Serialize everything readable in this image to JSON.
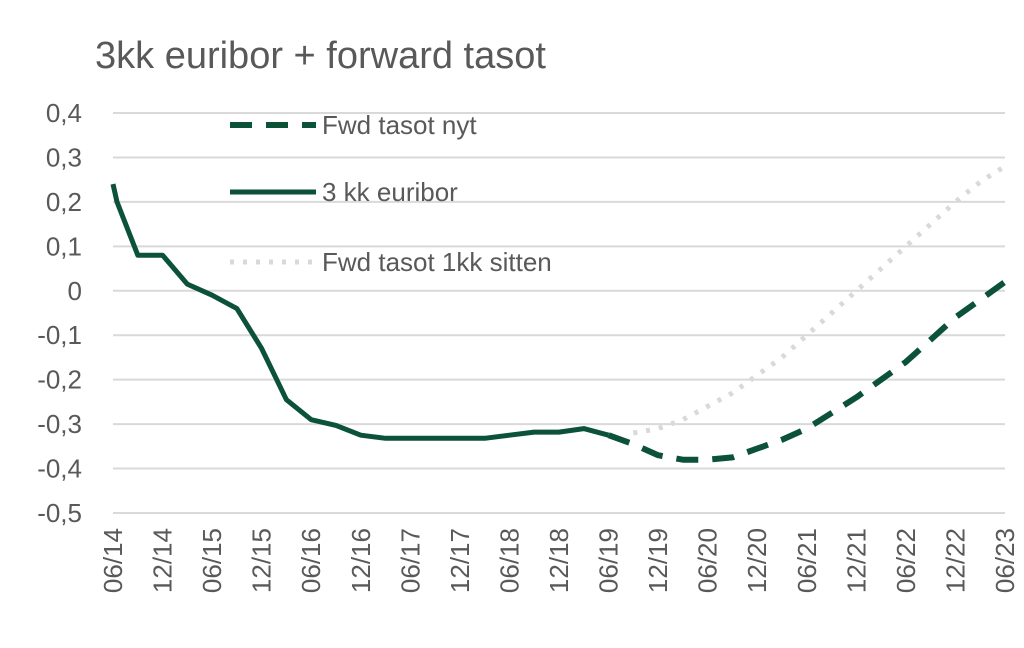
{
  "chart_data": {
    "type": "line",
    "title": "3kk euribor + forward tasot",
    "xlabel": "",
    "ylabel": "",
    "ylim": [
      -0.5,
      0.4
    ],
    "yticks": [
      "0,4",
      "0,3",
      "0,2",
      "0,1",
      "0",
      "-0,1",
      "-0,2",
      "-0,3",
      "-0,4",
      "-0,5"
    ],
    "ytick_values": [
      0.4,
      0.3,
      0.2,
      0.1,
      0,
      -0.1,
      -0.2,
      -0.3,
      -0.4,
      -0.5
    ],
    "x_categories": [
      "06/14",
      "12/14",
      "06/15",
      "12/15",
      "06/16",
      "12/16",
      "06/17",
      "12/17",
      "06/18",
      "12/18",
      "06/19",
      "12/19",
      "06/20",
      "12/20",
      "06/21",
      "12/21",
      "06/22",
      "12/22",
      "06/23"
    ],
    "grid": true,
    "legend_position": "top-left",
    "series": [
      {
        "name": "Fwd tasot nyt",
        "style": "dashed",
        "color": "#0b5239",
        "x": [
          10.0,
          10.5,
          11.0,
          11.5,
          12.0,
          12.5,
          13.0,
          13.5,
          14.0,
          14.5,
          15.0,
          15.5,
          16.0,
          16.5,
          17.0,
          17.5,
          18.0
        ],
        "values": [
          -0.325,
          -0.345,
          -0.37,
          -0.38,
          -0.38,
          -0.375,
          -0.355,
          -0.335,
          -0.31,
          -0.275,
          -0.24,
          -0.2,
          -0.16,
          -0.11,
          -0.06,
          -0.02,
          0.02
        ]
      },
      {
        "name": "3 kk euribor",
        "style": "solid",
        "color": "#0b5239",
        "x": [
          0.0,
          0.08,
          0.5,
          1.0,
          1.5,
          2.0,
          2.5,
          3.0,
          3.5,
          4.0,
          4.5,
          5.0,
          5.5,
          6.0,
          6.5,
          7.0,
          7.5,
          8.0,
          8.5,
          9.0,
          9.5,
          10.0
        ],
        "values": [
          0.24,
          0.2,
          0.08,
          0.08,
          0.015,
          -0.01,
          -0.04,
          -0.13,
          -0.245,
          -0.29,
          -0.303,
          -0.325,
          -0.332,
          -0.332,
          -0.332,
          -0.332,
          -0.332,
          -0.325,
          -0.318,
          -0.318,
          -0.31,
          -0.325
        ]
      },
      {
        "name": "Fwd tasot 1kk sitten",
        "style": "dotted",
        "color": "#d9d9d9",
        "x": [
          10.5,
          11.0,
          11.5,
          12.0,
          12.5,
          13.0,
          13.5,
          14.0,
          14.5,
          15.0,
          15.5,
          16.0,
          16.5,
          17.0,
          17.5,
          18.0
        ],
        "values": [
          -0.32,
          -0.31,
          -0.29,
          -0.26,
          -0.23,
          -0.19,
          -0.15,
          -0.1,
          -0.05,
          0.0,
          0.05,
          0.1,
          0.15,
          0.2,
          0.245,
          0.28
        ]
      }
    ]
  }
}
